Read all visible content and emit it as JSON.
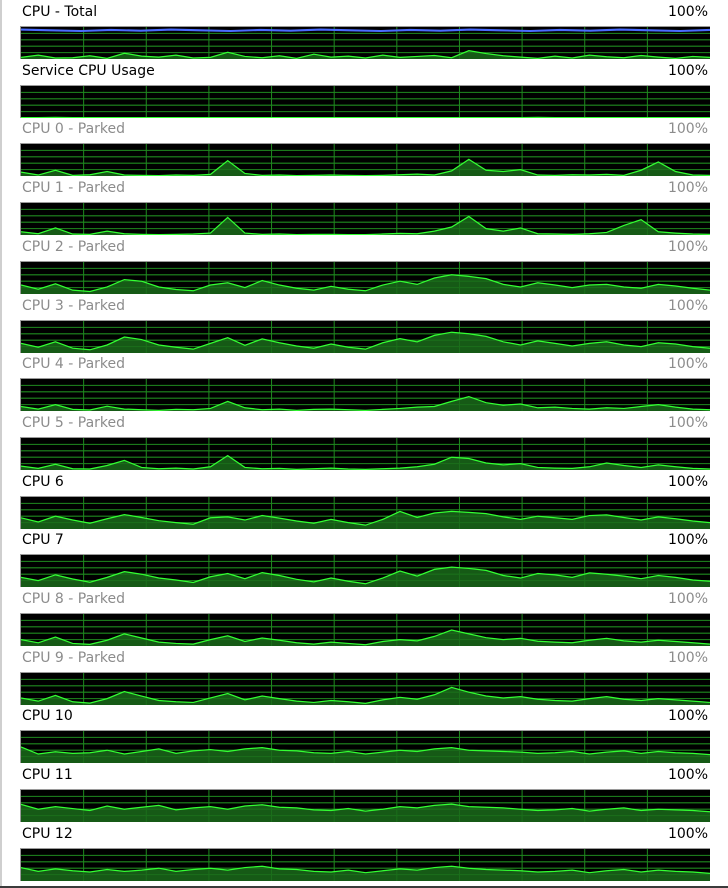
{
  "window": {
    "cpus": [
      {
        "title": "CPU - Total",
        "max": "100%",
        "parked": false,
        "overlay_color": "#4a6cff",
        "values": [
          5,
          12,
          3,
          4,
          10,
          2,
          18,
          9,
          6,
          12,
          3,
          5,
          21,
          8,
          4,
          10,
          2,
          15,
          6,
          9,
          3,
          12,
          5,
          8,
          11,
          4,
          26,
          17,
          10,
          6,
          2,
          9,
          3,
          12,
          7,
          4,
          11,
          6,
          2,
          8,
          5
        ]
      },
      {
        "title": "Service CPU Usage",
        "max": "100%",
        "parked": false,
        "values": [
          1,
          1,
          2,
          1,
          1,
          1,
          1,
          1,
          1,
          1,
          1,
          1,
          1,
          1,
          1,
          1,
          1,
          1,
          1,
          1,
          1,
          1,
          1,
          1,
          1,
          1,
          1,
          1,
          1,
          1,
          2,
          1,
          1,
          1,
          1,
          1,
          1,
          1,
          1,
          1,
          1
        ]
      },
      {
        "title": "CPU 0 - Parked",
        "max": "100%",
        "parked": true,
        "values": [
          12,
          3,
          18,
          2,
          4,
          14,
          3,
          2,
          1,
          3,
          2,
          5,
          48,
          8,
          2,
          3,
          1,
          2,
          3,
          2,
          1,
          2,
          4,
          6,
          3,
          16,
          52,
          18,
          14,
          20,
          3,
          2,
          4,
          3,
          5,
          2,
          18,
          44,
          14,
          3,
          2
        ]
      },
      {
        "title": "CPU 1 - Parked",
        "max": "100%",
        "parked": true,
        "values": [
          10,
          4,
          22,
          3,
          2,
          12,
          4,
          2,
          1,
          2,
          3,
          6,
          55,
          6,
          2,
          3,
          1,
          2,
          2,
          1,
          1,
          3,
          5,
          4,
          12,
          25,
          58,
          20,
          12,
          22,
          4,
          3,
          2,
          4,
          8,
          30,
          48,
          10,
          6,
          3,
          2
        ]
      },
      {
        "title": "CPU 2 - Parked",
        "max": "100%",
        "parked": true,
        "values": [
          28,
          15,
          32,
          12,
          8,
          22,
          45,
          40,
          22,
          14,
          10,
          28,
          35,
          20,
          42,
          28,
          18,
          12,
          24,
          15,
          10,
          28,
          40,
          30,
          50,
          60,
          55,
          48,
          30,
          22,
          35,
          28,
          20,
          28,
          30,
          22,
          18,
          30,
          25,
          18,
          12
        ]
      },
      {
        "title": "CPU 3 - Parked",
        "max": "100%",
        "parked": true,
        "values": [
          30,
          18,
          35,
          15,
          10,
          25,
          50,
          42,
          25,
          18,
          12,
          30,
          48,
          24,
          44,
          32,
          22,
          15,
          28,
          18,
          12,
          32,
          45,
          35,
          55,
          65,
          60,
          52,
          35,
          25,
          38,
          30,
          22,
          30,
          35,
          25,
          20,
          32,
          28,
          20,
          15
        ]
      },
      {
        "title": "CPU 4 - Parked",
        "max": "100%",
        "parked": true,
        "values": [
          14,
          6,
          20,
          5,
          3,
          15,
          6,
          4,
          2,
          5,
          4,
          8,
          30,
          10,
          4,
          6,
          2,
          5,
          6,
          4,
          2,
          5,
          8,
          12,
          14,
          30,
          45,
          26,
          18,
          22,
          10,
          12,
          8,
          6,
          10,
          8,
          14,
          20,
          12,
          6,
          4
        ]
      },
      {
        "title": "CPU 5 - Parked",
        "max": "100%",
        "parked": true,
        "values": [
          12,
          5,
          18,
          4,
          3,
          14,
          30,
          8,
          4,
          6,
          3,
          10,
          45,
          8,
          4,
          5,
          2,
          4,
          6,
          3,
          2,
          4,
          6,
          10,
          18,
          40,
          36,
          22,
          16,
          20,
          8,
          6,
          5,
          10,
          22,
          14,
          8,
          16,
          10,
          5,
          3
        ]
      },
      {
        "title": "CPU 6",
        "max": "100%",
        "parked": false,
        "values": [
          35,
          22,
          40,
          28,
          18,
          32,
          45,
          36,
          26,
          20,
          15,
          35,
          38,
          28,
          42,
          34,
          25,
          18,
          30,
          20,
          12,
          30,
          55,
          36,
          50,
          55,
          52,
          48,
          38,
          30,
          40,
          35,
          30,
          42,
          44,
          36,
          28,
          38,
          32,
          25,
          20
        ]
      },
      {
        "title": "CPU 7",
        "max": "100%",
        "parked": false,
        "values": [
          30,
          20,
          38,
          25,
          15,
          30,
          48,
          40,
          28,
          22,
          14,
          32,
          42,
          26,
          45,
          36,
          24,
          16,
          28,
          18,
          10,
          28,
          50,
          34,
          55,
          62,
          58,
          52,
          36,
          28,
          42,
          38,
          30,
          44,
          40,
          34,
          26,
          36,
          30,
          22,
          18
        ]
      },
      {
        "title": "CPU 8 - Parked",
        "max": "100%",
        "parked": true,
        "values": [
          20,
          10,
          28,
          8,
          5,
          18,
          38,
          25,
          12,
          8,
          6,
          20,
          32,
          14,
          25,
          18,
          10,
          6,
          12,
          8,
          4,
          14,
          20,
          16,
          30,
          50,
          38,
          26,
          20,
          24,
          15,
          12,
          10,
          18,
          24,
          16,
          12,
          18,
          14,
          10,
          6
        ]
      },
      {
        "title": "CPU 9 - Parked",
        "max": "100%",
        "parked": true,
        "values": [
          22,
          12,
          30,
          10,
          6,
          20,
          42,
          28,
          14,
          10,
          8,
          22,
          36,
          16,
          28,
          20,
          12,
          8,
          14,
          10,
          5,
          16,
          24,
          18,
          32,
          55,
          40,
          28,
          22,
          26,
          18,
          14,
          12,
          20,
          26,
          18,
          14,
          20,
          16,
          12,
          8
        ]
      },
      {
        "title": "CPU 10",
        "max": "100%",
        "parked": false,
        "values": [
          50,
          28,
          35,
          30,
          32,
          40,
          28,
          36,
          44,
          30,
          38,
          42,
          36,
          44,
          48,
          40,
          38,
          32,
          30,
          36,
          28,
          34,
          40,
          36,
          44,
          48,
          40,
          38,
          36,
          34,
          30,
          32,
          36,
          28,
          34,
          38,
          30,
          36,
          32,
          30,
          26
        ]
      },
      {
        "title": "CPU 11",
        "max": "100%",
        "parked": false,
        "values": [
          55,
          40,
          48,
          42,
          36,
          50,
          40,
          46,
          52,
          38,
          44,
          48,
          40,
          50,
          54,
          46,
          44,
          38,
          36,
          42,
          34,
          40,
          48,
          44,
          52,
          56,
          48,
          46,
          44,
          40,
          36,
          38,
          42,
          34,
          40,
          44,
          36,
          40,
          38,
          36,
          32
        ]
      },
      {
        "title": "CPU 12",
        "max": "100%",
        "parked": false,
        "values": [
          42,
          30,
          38,
          32,
          28,
          36,
          30,
          34,
          40,
          30,
          36,
          40,
          34,
          42,
          46,
          38,
          36,
          30,
          28,
          34,
          26,
          32,
          38,
          34,
          42,
          46,
          40,
          36,
          34,
          32,
          28,
          30,
          34,
          26,
          32,
          36,
          28,
          34,
          30,
          28,
          24
        ]
      }
    ]
  }
}
